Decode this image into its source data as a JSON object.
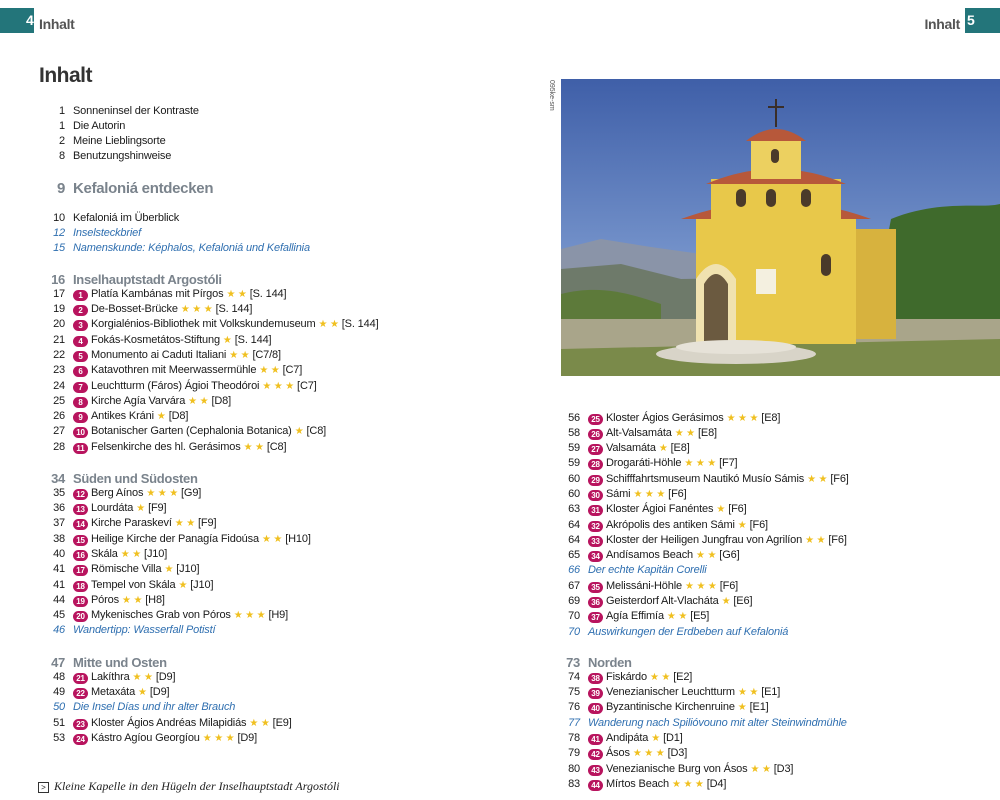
{
  "header": {
    "left_page": "4",
    "left_title": "Inhalt",
    "right_page": "5",
    "right_title": "Inhalt",
    "accent": "#23757a"
  },
  "title": "Inhalt",
  "colors": {
    "marker": "#b8145e",
    "stars": "#f0c020",
    "italic_link": "#2f6fb0",
    "section_heading": "#7a838c"
  },
  "blocks": [
    {
      "id": "intro",
      "rows": [
        {
          "page": "1",
          "text": "Sonneninsel der Kontraste"
        },
        {
          "page": "1",
          "text": "Die Autorin"
        },
        {
          "page": "2",
          "text": "Meine Lieblingsorte"
        },
        {
          "page": "8",
          "text": "Benutzungshinweise"
        }
      ]
    },
    {
      "id": "chapter",
      "rows": [
        {
          "page": "9",
          "text": "Kefaloniá entdecken",
          "type": "big"
        }
      ]
    },
    {
      "id": "overview",
      "rows": [
        {
          "page": "10",
          "text": "Kefaloniá im Überblick"
        },
        {
          "page": "12",
          "text": "Inselsteckbrief",
          "type": "it"
        },
        {
          "page": "15",
          "text": "Namenskunde: Képhalos, Kefaloniá und Kefallinia",
          "type": "it"
        }
      ]
    },
    {
      "id": "argostoli",
      "rows": [
        {
          "page": "16",
          "text": "Inselhauptstadt Argostóli",
          "type": "hd"
        },
        {
          "page": "17",
          "num": "1",
          "text": "Platía Kambánas mit Pírgos",
          "stars": 2,
          "ref": "[S. 144]"
        },
        {
          "page": "19",
          "num": "2",
          "text": "De-Bosset-Brücke",
          "stars": 3,
          "ref": "[S. 144]"
        },
        {
          "page": "20",
          "num": "3",
          "text": "Korgialénios-Bibliothek mit Volkskundemuseum",
          "stars": 2,
          "ref": "[S. 144]"
        },
        {
          "page": "21",
          "num": "4",
          "text": "Fokás-Kosmetátos-Stiftung",
          "stars": 1,
          "ref": "[S. 144]"
        },
        {
          "page": "22",
          "num": "5",
          "text": "Monumento ai Caduti Italiani",
          "stars": 2,
          "ref": "[C7/8]"
        },
        {
          "page": "23",
          "num": "6",
          "text": "Katavothren mit Meerwassermühle",
          "stars": 2,
          "ref": "[C7]"
        },
        {
          "page": "24",
          "num": "7",
          "text": "Leuchtturm (Fáros) Ágioi Theodóroi",
          "stars": 3,
          "ref": "[C7]"
        },
        {
          "page": "25",
          "num": "8",
          "text": "Kirche Agía Varvára",
          "stars": 2,
          "ref": "[D8]"
        },
        {
          "page": "26",
          "num": "9",
          "text": "Antikes Kráni",
          "stars": 1,
          "ref": "[D8]"
        },
        {
          "page": "27",
          "num": "10",
          "text": "Botanischer Garten (Cephalonia Botanica)",
          "stars": 1,
          "ref": "[C8]"
        },
        {
          "page": "28",
          "num": "11",
          "text": "Felsenkirche des hl. Gerásimos",
          "stars": 2,
          "ref": "[C8]"
        }
      ]
    },
    {
      "id": "sueden",
      "rows": [
        {
          "page": "34",
          "text": "Süden und Südosten",
          "type": "hd"
        },
        {
          "page": "35",
          "num": "12",
          "text": "Berg Aínos",
          "stars": 3,
          "ref": "[G9]"
        },
        {
          "page": "36",
          "num": "13",
          "text": "Lourdáta",
          "stars": 1,
          "ref": "[F9]"
        },
        {
          "page": "37",
          "num": "14",
          "text": "Kirche Paraskeví",
          "stars": 2,
          "ref": "[F9]"
        },
        {
          "page": "38",
          "num": "15",
          "text": "Heilige Kirche der Panagía Fidoúsa",
          "stars": 2,
          "ref": "[H10]"
        },
        {
          "page": "40",
          "num": "16",
          "text": "Skála",
          "stars": 2,
          "ref": "[J10]"
        },
        {
          "page": "41",
          "num": "17",
          "text": "Römische Villa",
          "stars": 1,
          "ref": "[J10]"
        },
        {
          "page": "41",
          "num": "18",
          "text": "Tempel von Skála",
          "stars": 1,
          "ref": "[J10]"
        },
        {
          "page": "44",
          "num": "19",
          "text": "Póros",
          "stars": 2,
          "ref": "[H8]"
        },
        {
          "page": "45",
          "num": "20",
          "text": "Mykenisches Grab von Póros",
          "stars": 3,
          "ref": "[H9]"
        },
        {
          "page": "46",
          "text": "Wandertipp: Wasserfall Potistí",
          "type": "it"
        }
      ]
    },
    {
      "id": "mitte",
      "rows": [
        {
          "page": "47",
          "text": "Mitte und Osten",
          "type": "hd"
        },
        {
          "page": "48",
          "num": "21",
          "text": "Lakíthra",
          "stars": 2,
          "ref": "[D9]"
        },
        {
          "page": "49",
          "num": "22",
          "text": "Metaxáta",
          "stars": 1,
          "ref": "[D9]"
        },
        {
          "page": "50",
          "text": "Die Insel Días und ihr alter Brauch",
          "type": "it"
        },
        {
          "page": "51",
          "num": "23",
          "text": "Kloster Ágios Andréas Milapidiás",
          "stars": 2,
          "ref": "[E9]"
        },
        {
          "page": "53",
          "num": "24",
          "text": "Kástro Agíou Georgíou",
          "stars": 3,
          "ref": "[D9]"
        }
      ]
    },
    {
      "id": "mitte2",
      "rows": [
        {
          "page": "56",
          "num": "25",
          "text": "Kloster Ágios Gerásimos",
          "stars": 3,
          "ref": "[E8]"
        },
        {
          "page": "58",
          "num": "26",
          "text": "Alt-Valsamáta",
          "stars": 2,
          "ref": "[E8]"
        },
        {
          "page": "59",
          "num": "27",
          "text": "Valsamáta",
          "stars": 1,
          "ref": "[E8]"
        },
        {
          "page": "59",
          "num": "28",
          "text": "Drogaráti-Höhle",
          "stars": 3,
          "ref": "[F7]"
        },
        {
          "page": "60",
          "num": "29",
          "text": "Schifffahrtsmuseum Nautikó Musío Sámis",
          "stars": 2,
          "ref": "[F6]"
        },
        {
          "page": "60",
          "num": "30",
          "text": "Sámi",
          "stars": 3,
          "ref": "[F6]"
        },
        {
          "page": "63",
          "num": "31",
          "text": "Kloster Ágioi Fanéntes",
          "stars": 1,
          "ref": "[F6]"
        },
        {
          "page": "64",
          "num": "32",
          "text": "Akrópolis des antiken Sámi",
          "stars": 1,
          "ref": "[F6]"
        },
        {
          "page": "64",
          "num": "33",
          "text": "Kloster der Heiligen Jungfrau von Agrilíon",
          "stars": 2,
          "ref": "[F6]"
        },
        {
          "page": "65",
          "num": "34",
          "text": "Andísamos Beach",
          "stars": 2,
          "ref": "[G6]"
        },
        {
          "page": "66",
          "text": "Der echte Kapitän Corelli",
          "type": "it"
        },
        {
          "page": "67",
          "num": "35",
          "text": "Melissáni-Höhle",
          "stars": 3,
          "ref": "[F6]"
        },
        {
          "page": "69",
          "num": "36",
          "text": "Geisterdorf Alt-Vlacháta",
          "stars": 1,
          "ref": "[E6]"
        },
        {
          "page": "70",
          "num": "37",
          "text": "Agía Effimía",
          "stars": 2,
          "ref": "[E5]"
        },
        {
          "page": "70",
          "text": "Auswirkungen der Erdbeben auf Kefaloniá",
          "type": "it"
        }
      ]
    },
    {
      "id": "norden",
      "rows": [
        {
          "page": "73",
          "text": "Norden",
          "type": "hd"
        },
        {
          "page": "74",
          "num": "38",
          "text": "Fiskárdo",
          "stars": 2,
          "ref": "[E2]"
        },
        {
          "page": "75",
          "num": "39",
          "text": "Venezianischer Leuchtturm",
          "stars": 2,
          "ref": "[E1]"
        },
        {
          "page": "76",
          "num": "40",
          "text": "Byzantinische Kirchenruine",
          "stars": 1,
          "ref": "[E1]"
        },
        {
          "page": "77",
          "text": "Wanderung nach Spilióvouno mit alter Steinwindmühle",
          "type": "it"
        },
        {
          "page": "78",
          "num": "41",
          "text": "Andipáta",
          "stars": 1,
          "ref": "[D1]"
        },
        {
          "page": "79",
          "num": "42",
          "text": "Ásos",
          "stars": 3,
          "ref": "[D3]"
        },
        {
          "page": "80",
          "num": "43",
          "text": "Venezianische Burg von Ásos",
          "stars": 2,
          "ref": "[D3]"
        },
        {
          "page": "83",
          "num": "44",
          "text": "Mírtos Beach",
          "stars": 3,
          "ref": "[D4]"
        }
      ]
    }
  ],
  "photo": {
    "credit": "095ke-sm",
    "caption": "Kleine Kapelle in den Hügeln der Inselhauptstadt Argostóli",
    "caption_icon": "arrow-box-icon"
  }
}
